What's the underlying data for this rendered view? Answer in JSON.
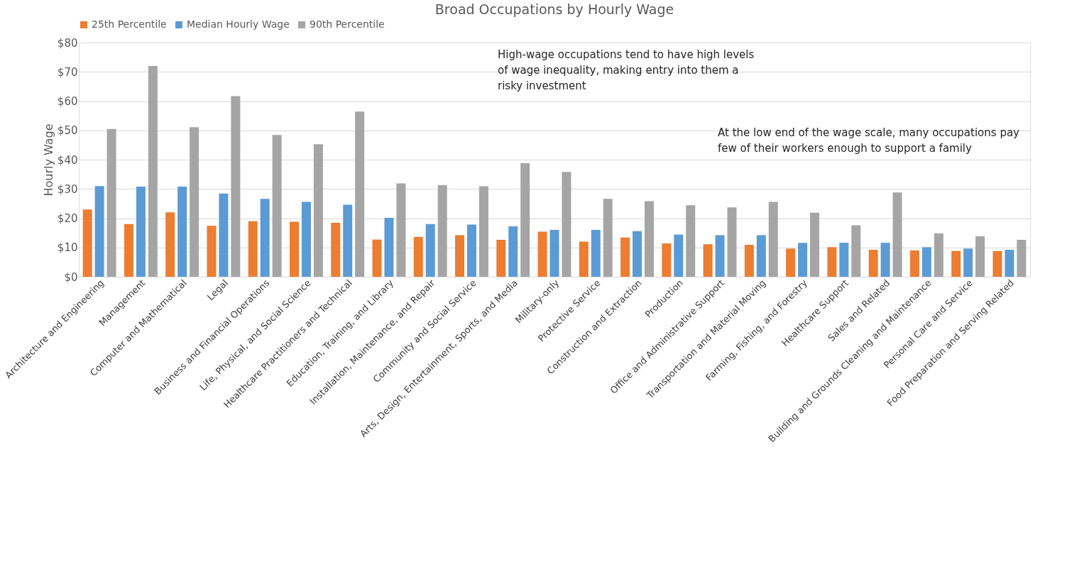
{
  "chart_data": {
    "type": "bar",
    "title": "Broad Occupations by Hourly Wage",
    "ylabel": "Hourly Wage",
    "categories": [
      "Architecture and Engineering",
      "Management",
      "Computer and Mathematical",
      "Legal",
      "Business and Financial Operations",
      "Life, Physical, and Social Science",
      "Healthcare Practitioners and Technical",
      "Education, Training, and Library",
      "Installation, Maintenance, and Repair",
      "Community and Social Service",
      "Arts, Design, Entertainment, Sports, and Media",
      "Military-only",
      "Protective Service",
      "Construction and Extraction",
      "Production",
      "Office and Administrative Support",
      "Transportation and Material Moving",
      "Farming, Fishing, and Forestry",
      "Healthcare Support",
      "Sales and Related",
      "Building and Grounds Cleaning and Maintenance",
      "Personal Care and Service",
      "Food Preparation and Serving Related"
    ],
    "series": [
      {
        "name": "25th Percentile",
        "color": "#ed7d31",
        "values": [
          23,
          18,
          22,
          17.4,
          19,
          18.8,
          18.4,
          12.7,
          13.6,
          14.2,
          12.6,
          15.4,
          12,
          13.4,
          11.4,
          11.1,
          10.9,
          9.6,
          10.1,
          9.2,
          9,
          8.8,
          8.8
        ]
      },
      {
        "name": "Median Hourly Wage",
        "color": "#5b9bd5",
        "values": [
          31,
          30.8,
          30.8,
          28.4,
          26.6,
          25.6,
          24.6,
          20.1,
          18,
          17.8,
          17.2,
          16,
          16,
          15.6,
          14.4,
          14.2,
          14.2,
          11.6,
          11.6,
          11.6,
          10.1,
          9.6,
          9.2
        ]
      },
      {
        "name": "90th Percentile",
        "color": "#a5a5a5",
        "values": [
          50.5,
          72,
          51.1,
          61.7,
          48.4,
          45.3,
          56.4,
          31.9,
          31.3,
          30.9,
          38.8,
          35.8,
          26.6,
          25.8,
          24.4,
          23.7,
          25.6,
          21.9,
          17.6,
          28.8,
          14.8,
          13.8,
          12.6
        ]
      }
    ],
    "ylim": [
      0,
      80
    ],
    "yticks": [
      {
        "value": 0,
        "label": "$0"
      },
      {
        "value": 10,
        "label": "$10"
      },
      {
        "value": 20,
        "label": "$20"
      },
      {
        "value": 30,
        "label": "$30"
      },
      {
        "value": 40,
        "label": "$40"
      },
      {
        "value": 50,
        "label": "$50"
      },
      {
        "value": 60,
        "label": "$60"
      },
      {
        "value": 70,
        "label": "$70"
      },
      {
        "value": 80,
        "label": "$80"
      }
    ],
    "grid": "y",
    "legend": "top",
    "annotations": [
      "High-wage occupations tend to have high levels of wage inequality, making entry into them a risky investment",
      "At the low end of the wage scale, many occupations pay few of their workers enough to support a family"
    ]
  }
}
